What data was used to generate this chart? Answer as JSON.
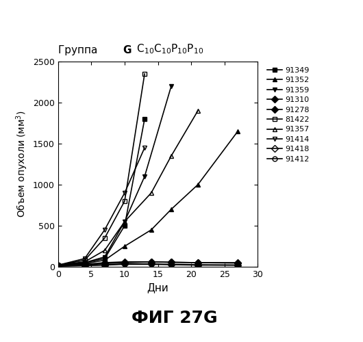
{
  "title_regular": "Группа",
  "title_bold": "G",
  "title_formula": "C$_{10}$C$_{10}$P$_{10}$P$_{10}$",
  "ylabel": "Объем опухоли (мм$^3$)",
  "xlabel": "Дни",
  "caption": "ФИГ 27G",
  "xlim": [
    0,
    30
  ],
  "ylim": [
    0,
    2500
  ],
  "yticks": [
    0,
    500,
    1000,
    1500,
    2000,
    2500
  ],
  "xticks": [
    0,
    5,
    10,
    15,
    20,
    25,
    30
  ],
  "series": [
    {
      "label": "91349",
      "marker": "s",
      "fillstyle": "full",
      "x": [
        0,
        4,
        7,
        10,
        13
      ],
      "y": [
        20,
        50,
        100,
        500,
        1800
      ]
    },
    {
      "label": "91352",
      "marker": "^",
      "fillstyle": "full",
      "x": [
        0,
        4,
        7,
        10,
        14,
        17,
        21,
        27
      ],
      "y": [
        20,
        40,
        80,
        250,
        450,
        700,
        1000,
        1650
      ]
    },
    {
      "label": "91359",
      "marker": "v",
      "fillstyle": "full",
      "x": [
        0,
        4,
        7,
        10,
        13,
        17
      ],
      "y": [
        20,
        50,
        120,
        550,
        1100,
        2200
      ]
    },
    {
      "label": "91310",
      "marker": "D",
      "fillstyle": "full",
      "x": [
        0,
        4,
        7,
        10,
        14,
        17,
        21,
        27
      ],
      "y": [
        20,
        30,
        50,
        60,
        60,
        55,
        50,
        50
      ]
    },
    {
      "label": "91278",
      "marker": "D",
      "fillstyle": "full",
      "x": [
        0,
        4,
        7,
        10,
        14,
        17,
        21,
        27
      ],
      "y": [
        10,
        15,
        20,
        30,
        30,
        25,
        20,
        20
      ]
    },
    {
      "label": "81422",
      "marker": "s",
      "fillstyle": "none",
      "x": [
        0,
        4,
        7,
        10,
        13
      ],
      "y": [
        20,
        80,
        350,
        800,
        2350
      ]
    },
    {
      "label": "91357",
      "marker": "^",
      "fillstyle": "none",
      "x": [
        0,
        4,
        7,
        10,
        14,
        17,
        21
      ],
      "y": [
        20,
        60,
        200,
        550,
        900,
        1350,
        1900
      ]
    },
    {
      "label": "91414",
      "marker": "v",
      "fillstyle": "none",
      "x": [
        0,
        4,
        7,
        10,
        13
      ],
      "y": [
        20,
        100,
        450,
        900,
        1450
      ]
    },
    {
      "label": "91418",
      "marker": "D",
      "fillstyle": "none",
      "x": [
        0,
        4,
        7,
        10,
        14,
        17,
        21,
        27
      ],
      "y": [
        10,
        20,
        40,
        50,
        60,
        55,
        50,
        45
      ]
    },
    {
      "label": "91412",
      "marker": "o",
      "fillstyle": "none",
      "x": [
        0,
        4,
        7,
        10,
        14,
        17,
        21,
        27
      ],
      "y": [
        10,
        15,
        25,
        35,
        35,
        30,
        25,
        20
      ]
    }
  ]
}
